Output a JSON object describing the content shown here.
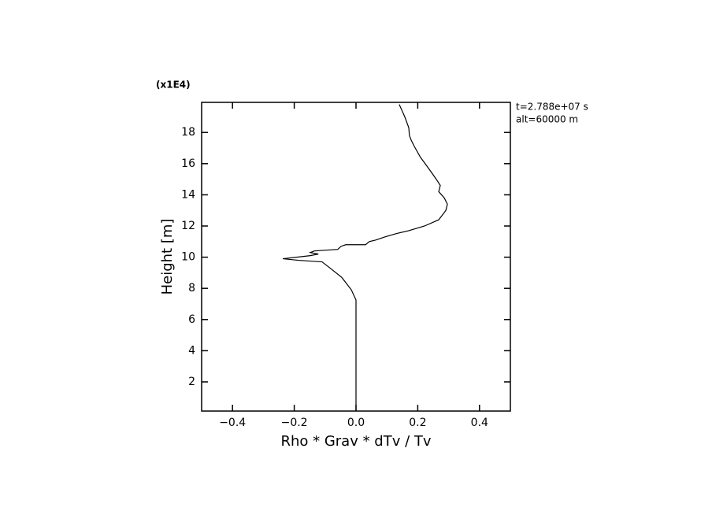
{
  "chart_data": {
    "type": "line",
    "multiplier_label": "(x1E4)",
    "xlabel": "Rho * Grav * dTv / Tv",
    "ylabel": "Height [m]",
    "annotations": [
      "t=2.788e+07 s",
      "alt=60000 m"
    ],
    "xlim": [
      -0.5,
      0.5
    ],
    "xticks": [
      {
        "value": -0.4,
        "label": "−0.4"
      },
      {
        "value": -0.2,
        "label": "−0.2"
      },
      {
        "value": 0,
        "label": "0.0"
      },
      0.2,
      0.4
    ],
    "ylim": [
      0.13,
      19.93
    ],
    "yticks": [
      2,
      4,
      6,
      8,
      10,
      12,
      14,
      16,
      18
    ],
    "color": "#000000",
    "y": [
      0.13,
      7.25,
      7.9,
      8.7,
      9.3,
      9.7,
      9.8,
      9.9,
      10.1,
      10.2,
      10.3,
      10.4,
      10.5,
      10.7,
      10.8,
      10.8,
      11.0,
      11.1,
      11.3,
      11.5,
      11.7,
      12.0,
      12.4,
      13.0,
      13.4,
      13.8,
      14.2,
      14.6,
      15.0,
      15.7,
      16.4,
      17.1,
      17.5,
      17.8,
      18.3,
      19.0,
      19.8
    ],
    "values": [
      0,
      0,
      -0.015,
      -0.046,
      -0.084,
      -0.11,
      -0.186,
      -0.237,
      -0.148,
      -0.122,
      -0.148,
      -0.135,
      -0.059,
      -0.048,
      -0.033,
      0.031,
      0.043,
      0.064,
      0.094,
      0.128,
      0.171,
      0.222,
      0.268,
      0.291,
      0.296,
      0.286,
      0.268,
      0.273,
      0.26,
      0.235,
      0.209,
      0.189,
      0.179,
      0.173,
      0.171,
      0.158,
      0.14
    ]
  }
}
